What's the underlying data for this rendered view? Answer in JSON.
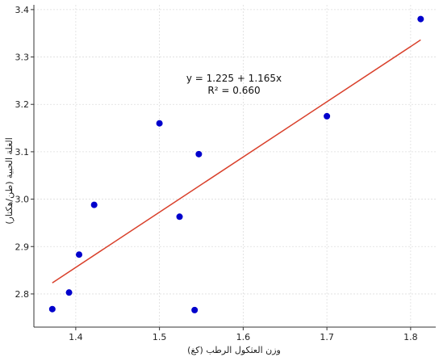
{
  "chart_data": {
    "type": "scatter",
    "xlabel": "وزن العثكول الرطب (كغ)",
    "ylabel": "الغلة الحبية (طن/هكتار)",
    "xlim": [
      1.35,
      1.83
    ],
    "ylim": [
      2.73,
      3.41
    ],
    "xticks": [
      1.4,
      1.5,
      1.6,
      1.7,
      1.8
    ],
    "yticks": [
      2.8,
      2.9,
      3.0,
      3.1,
      3.2,
      3.3,
      3.4
    ],
    "xtick_labels": [
      "1.4",
      "1.5",
      "1.6",
      "1.7",
      "1.8"
    ],
    "ytick_labels": [
      "2.8",
      "2.9",
      "3.0",
      "3.1",
      "3.2",
      "3.3",
      "3.4"
    ],
    "grid": true,
    "point_color": "#0000cc",
    "line_color": "#d9402b",
    "points": [
      {
        "x": 1.372,
        "y": 2.768
      },
      {
        "x": 1.392,
        "y": 2.803
      },
      {
        "x": 1.404,
        "y": 2.883
      },
      {
        "x": 1.422,
        "y": 2.988
      },
      {
        "x": 1.5,
        "y": 3.16
      },
      {
        "x": 1.524,
        "y": 2.963
      },
      {
        "x": 1.542,
        "y": 2.766
      },
      {
        "x": 1.547,
        "y": 3.095
      },
      {
        "x": 1.7,
        "y": 3.175
      },
      {
        "x": 1.812,
        "y": 3.38
      }
    ],
    "fit": {
      "intercept": 1.225,
      "slope": 1.165,
      "x_range": [
        1.372,
        1.812
      ]
    },
    "annotation": {
      "equation": "y = 1.225 + 1.165x",
      "r2": "R² = 0.660"
    }
  }
}
